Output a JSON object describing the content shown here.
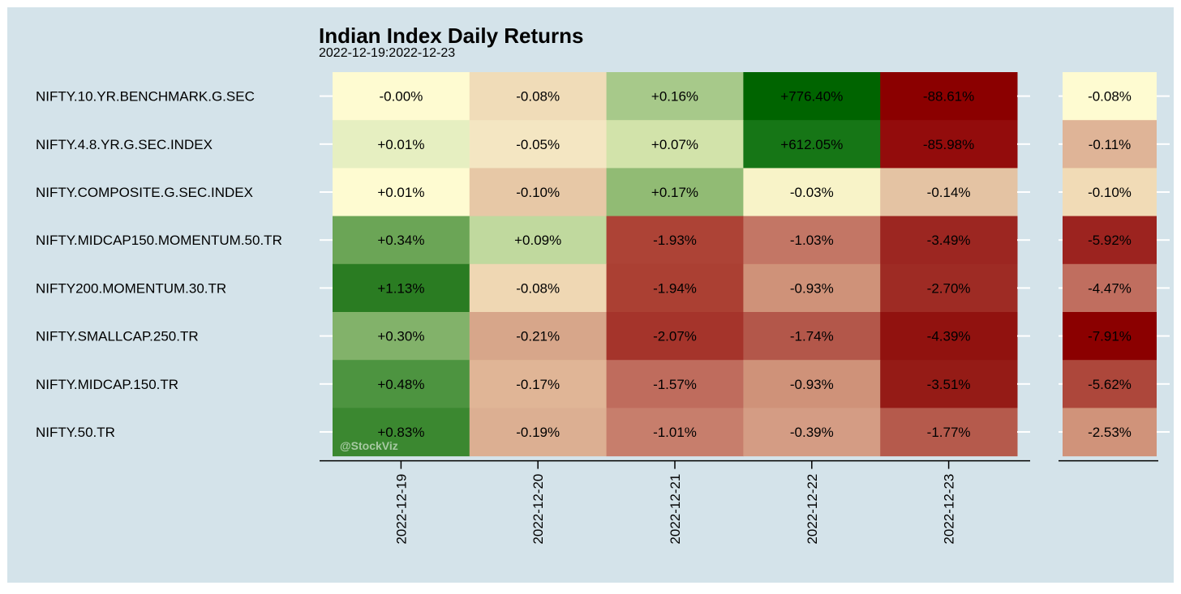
{
  "chart_data": {
    "type": "heatmap",
    "title": "Indian Index Daily Returns",
    "subtitle": "2022-12-19:2022-12-23",
    "watermark": "@StockViz",
    "columns": [
      "2022-12-19",
      "2022-12-20",
      "2022-12-21",
      "2022-12-22",
      "2022-12-23"
    ],
    "rows": [
      {
        "name": "NIFTY.10.YR.BENCHMARK.G.SEC",
        "labels": [
          "-0.00%",
          "-0.08%",
          "+0.16%",
          "+776.40%",
          "-88.61%"
        ],
        "values": [
          0.0,
          -0.08,
          0.16,
          776.4,
          -88.61
        ],
        "total_label": "-0.08%",
        "total": -0.08
      },
      {
        "name": "NIFTY.4.8.YR.G.SEC.INDEX",
        "labels": [
          "+0.01%",
          "-0.05%",
          "+0.07%",
          "+612.05%",
          "-85.98%"
        ],
        "values": [
          0.01,
          -0.05,
          0.07,
          612.05,
          -85.98
        ],
        "total_label": "-0.11%",
        "total": -0.11
      },
      {
        "name": "NIFTY.COMPOSITE.G.SEC.INDEX",
        "labels": [
          "+0.01%",
          "-0.10%",
          "+0.17%",
          "-0.03%",
          "-0.14%"
        ],
        "values": [
          0.01,
          -0.1,
          0.17,
          -0.03,
          -0.14
        ],
        "total_label": "-0.10%",
        "total": -0.1
      },
      {
        "name": "NIFTY.MIDCAP150.MOMENTUM.50.TR",
        "labels": [
          "+0.34%",
          "+0.09%",
          "-1.93%",
          "-1.03%",
          "-3.49%"
        ],
        "values": [
          0.34,
          0.09,
          -1.93,
          -1.03,
          -3.49
        ],
        "total_label": "-5.92%",
        "total": -5.92
      },
      {
        "name": "NIFTY200.MOMENTUM.30.TR",
        "labels": [
          "+1.13%",
          "-0.08%",
          "-1.94%",
          "-0.93%",
          "-2.70%"
        ],
        "values": [
          1.13,
          -0.08,
          -1.94,
          -0.93,
          -2.7
        ],
        "total_label": "-4.47%",
        "total": -4.47
      },
      {
        "name": "NIFTY.SMALLCAP.250.TR",
        "labels": [
          "+0.30%",
          "-0.21%",
          "-2.07%",
          "-1.74%",
          "-4.39%"
        ],
        "values": [
          0.3,
          -0.21,
          -2.07,
          -1.74,
          -4.39
        ],
        "total_label": "-7.91%",
        "total": -7.91
      },
      {
        "name": "NIFTY.MIDCAP.150.TR",
        "labels": [
          "+0.48%",
          "-0.17%",
          "-1.57%",
          "-0.93%",
          "-3.51%"
        ],
        "values": [
          0.48,
          -0.17,
          -1.57,
          -0.93,
          -3.51
        ],
        "total_label": "-5.62%",
        "total": -5.62
      },
      {
        "name": "NIFTY.50.TR",
        "labels": [
          "+0.83%",
          "-0.19%",
          "-1.01%",
          "-0.39%",
          "-1.77%"
        ],
        "values": [
          0.83,
          -0.19,
          -1.01,
          -0.39,
          -1.77
        ],
        "total_label": "-2.53%",
        "total": -2.53
      }
    ],
    "colors": {
      "background": "#d4e3ea",
      "cells": [
        [
          "#fefbd1",
          "#f0dcb8",
          "#a7c98a",
          "#006400",
          "#8b0000"
        ],
        [
          "#e6efc1",
          "#f4e6c2",
          "#d2e3aa",
          "#167616",
          "#930c0c"
        ],
        [
          "#fefbd1",
          "#e7c8a6",
          "#91bb74",
          "#f8f3c8",
          "#e4c3a3"
        ],
        [
          "#6ba556",
          "#c0d99e",
          "#ad4336",
          "#c37665",
          "#9c2621"
        ],
        [
          "#2a7c22",
          "#efd7b3",
          "#ab4033",
          "#cf9279",
          "#9e2b24"
        ],
        [
          "#82b26a",
          "#d7a68a",
          "#a5342b",
          "#b3574a",
          "#91120f"
        ],
        [
          "#4d9440",
          "#e0b596",
          "#bf6c5d",
          "#cf9279",
          "#951b16"
        ],
        [
          "#3b8830",
          "#dcaf92",
          "#c77e6c",
          "#d49c84",
          "#b55a4c"
        ]
      ],
      "total_cells": [
        "#fefbd1",
        "#dfb497",
        "#f1dbb6",
        "#9c231f",
        "#c06e5f",
        "#8b0000",
        "#ad473b",
        "#d0937a"
      ],
      "tick": "#ffffff",
      "axis": "#000000"
    }
  }
}
